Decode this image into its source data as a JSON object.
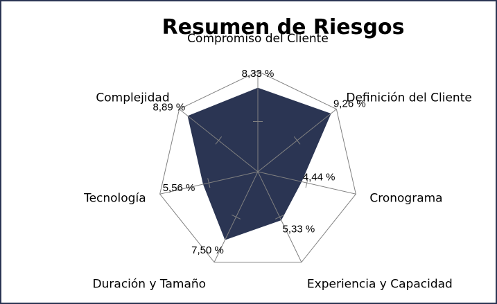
{
  "chart_data": {
    "type": "radar",
    "title": "Resumen de Riesgos",
    "categories": [
      "Compromiso del Cliente",
      "Definición del Cliente",
      "Cronograma",
      "Experiencia y Capacidad",
      "Duración y Tamaño",
      "Tecnología",
      "Complejidad"
    ],
    "values": [
      8.33,
      9.26,
      4.44,
      5.33,
      7.5,
      5.56,
      8.89
    ],
    "value_labels": [
      "8,33 %",
      "9,26 %",
      "4,44 %",
      "5,33 %",
      "7,50 %",
      "5,56 %",
      "8,89 %"
    ],
    "rlim": [
      0,
      10
    ],
    "fill_color": "#2b3553",
    "grid_color": "#808080"
  }
}
